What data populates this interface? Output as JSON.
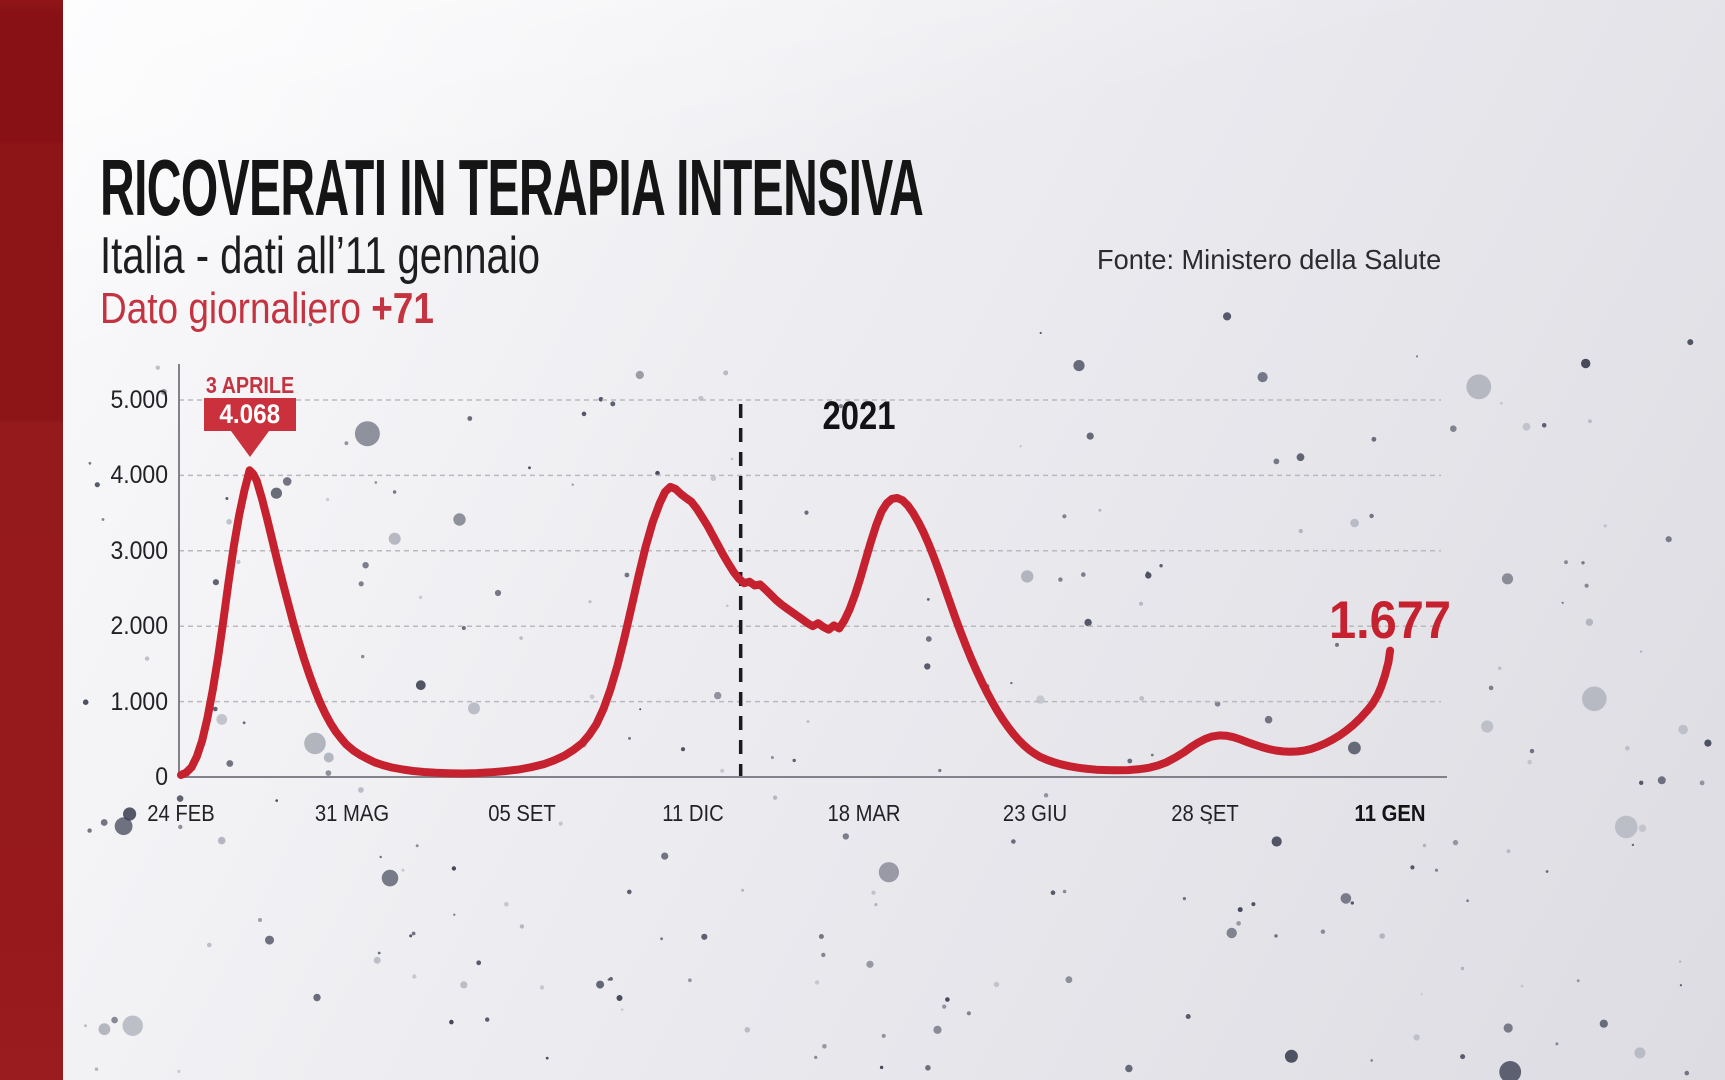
{
  "header": {
    "title": "RICOVERATI IN TERAPIA INTENSIVA",
    "subtitle": "Italia - dati all’11 gennaio",
    "source": "Fonte: Ministero della Salute",
    "daily_label": "Dato giornaliero ",
    "daily_value": "+71"
  },
  "colors": {
    "accent_red": "#c5212e",
    "text_red": "#c43440",
    "annotation_box_red": "#ca313c",
    "sidebar_red": "#8e1517",
    "grid_gray": "#b9b9c0",
    "axis_gray": "#82828a",
    "divider_black": "#1b1b1e",
    "dot_dark": "#3c4052",
    "dot_light": "#8e93a0"
  },
  "chart_data": {
    "type": "line",
    "title": "Ricoverati in terapia intensiva - Italia",
    "xlabel": "",
    "ylabel": "",
    "ylim": [
      0,
      5000
    ],
    "grid": "horizontal-dashed",
    "legend": "none",
    "x_axis": {
      "tick_labels": [
        "24 FEB",
        "31 MAG",
        "05 SET",
        "11 DIC",
        "18 MAR",
        "23 GIU",
        "28 SET",
        "11 GEN"
      ],
      "tick_days": [
        0,
        97,
        194,
        291,
        388,
        485,
        582,
        687
      ],
      "total_days": 687,
      "bold_label": "11 GEN"
    },
    "y_axis": {
      "tick_labels": [
        "0",
        "1.000",
        "2.000",
        "3.000",
        "4.000",
        "5.000"
      ],
      "tick_values": [
        0,
        1000,
        2000,
        3000,
        4000,
        5000
      ]
    },
    "year_divider": {
      "day": 318,
      "label": "2021"
    },
    "annotations": {
      "peak": {
        "date_label": "3 APRILE",
        "value_label": "4.068",
        "day": 39,
        "value": 4068
      },
      "latest": {
        "value_label": "1.677",
        "day": 687,
        "value": 1677
      }
    },
    "series": [
      {
        "name": "Terapia intensiva",
        "color": "#c5212e",
        "points": [
          [
            0,
            26
          ],
          [
            3,
            60
          ],
          [
            6,
            130
          ],
          [
            9,
            270
          ],
          [
            12,
            480
          ],
          [
            15,
            780
          ],
          [
            18,
            1150
          ],
          [
            21,
            1580
          ],
          [
            24,
            2060
          ],
          [
            27,
            2580
          ],
          [
            30,
            3060
          ],
          [
            33,
            3470
          ],
          [
            36,
            3800
          ],
          [
            39,
            4068
          ],
          [
            41,
            4020
          ],
          [
            43,
            3930
          ],
          [
            46,
            3690
          ],
          [
            49,
            3420
          ],
          [
            52,
            3130
          ],
          [
            55,
            2840
          ],
          [
            58,
            2560
          ],
          [
            61,
            2290
          ],
          [
            64,
            2030
          ],
          [
            67,
            1790
          ],
          [
            70,
            1560
          ],
          [
            73,
            1350
          ],
          [
            76,
            1160
          ],
          [
            79,
            990
          ],
          [
            82,
            840
          ],
          [
            85,
            710
          ],
          [
            88,
            600
          ],
          [
            91,
            510
          ],
          [
            94,
            430
          ],
          [
            98,
            350
          ],
          [
            102,
            290
          ],
          [
            106,
            240
          ],
          [
            110,
            195
          ],
          [
            115,
            155
          ],
          [
            120,
            125
          ],
          [
            126,
            100
          ],
          [
            132,
            80
          ],
          [
            138,
            66
          ],
          [
            145,
            56
          ],
          [
            152,
            50
          ],
          [
            160,
            47
          ],
          [
            168,
            52
          ],
          [
            176,
            62
          ],
          [
            184,
            78
          ],
          [
            192,
            100
          ],
          [
            199,
            130
          ],
          [
            206,
            170
          ],
          [
            212,
            220
          ],
          [
            218,
            285
          ],
          [
            223,
            360
          ],
          [
            228,
            450
          ],
          [
            232,
            560
          ],
          [
            236,
            700
          ],
          [
            240,
            900
          ],
          [
            244,
            1160
          ],
          [
            248,
            1480
          ],
          [
            252,
            1850
          ],
          [
            256,
            2260
          ],
          [
            260,
            2670
          ],
          [
            264,
            3050
          ],
          [
            268,
            3380
          ],
          [
            272,
            3630
          ],
          [
            275,
            3780
          ],
          [
            278,
            3848
          ],
          [
            281,
            3820
          ],
          [
            284,
            3755
          ],
          [
            287,
            3700
          ],
          [
            290,
            3650
          ],
          [
            293,
            3560
          ],
          [
            296,
            3450
          ],
          [
            299,
            3340
          ],
          [
            302,
            3210
          ],
          [
            305,
            3080
          ],
          [
            308,
            2950
          ],
          [
            311,
            2830
          ],
          [
            314,
            2720
          ],
          [
            317,
            2630
          ],
          [
            320,
            2570
          ],
          [
            323,
            2590
          ],
          [
            326,
            2540
          ],
          [
            329,
            2555
          ],
          [
            332,
            2490
          ],
          [
            335,
            2420
          ],
          [
            338,
            2350
          ],
          [
            341,
            2290
          ],
          [
            344,
            2240
          ],
          [
            347,
            2190
          ],
          [
            350,
            2140
          ],
          [
            353,
            2090
          ],
          [
            356,
            2040
          ],
          [
            359,
            2000
          ],
          [
            362,
            2040
          ],
          [
            365,
            1990
          ],
          [
            368,
            1955
          ],
          [
            371,
            2010
          ],
          [
            374,
            1970
          ],
          [
            377,
            2080
          ],
          [
            380,
            2230
          ],
          [
            383,
            2420
          ],
          [
            386,
            2640
          ],
          [
            389,
            2880
          ],
          [
            392,
            3120
          ],
          [
            395,
            3340
          ],
          [
            398,
            3520
          ],
          [
            401,
            3630
          ],
          [
            404,
            3690
          ],
          [
            407,
            3700
          ],
          [
            410,
            3670
          ],
          [
            413,
            3600
          ],
          [
            416,
            3500
          ],
          [
            419,
            3380
          ],
          [
            422,
            3240
          ],
          [
            425,
            3080
          ],
          [
            428,
            2900
          ],
          [
            431,
            2710
          ],
          [
            434,
            2510
          ],
          [
            437,
            2310
          ],
          [
            440,
            2110
          ],
          [
            443,
            1920
          ],
          [
            446,
            1740
          ],
          [
            449,
            1570
          ],
          [
            452,
            1410
          ],
          [
            455,
            1260
          ],
          [
            458,
            1120
          ],
          [
            461,
            990
          ],
          [
            464,
            870
          ],
          [
            467,
            760
          ],
          [
            470,
            660
          ],
          [
            473,
            570
          ],
          [
            476,
            490
          ],
          [
            479,
            420
          ],
          [
            482,
            360
          ],
          [
            485,
            310
          ],
          [
            488,
            268
          ],
          [
            492,
            228
          ],
          [
            496,
            195
          ],
          [
            500,
            168
          ],
          [
            505,
            142
          ],
          [
            510,
            122
          ],
          [
            515,
            107
          ],
          [
            520,
            97
          ],
          [
            526,
            91
          ],
          [
            532,
            89
          ],
          [
            538,
            92
          ],
          [
            544,
            102
          ],
          [
            550,
            122
          ],
          [
            555,
            152
          ],
          [
            560,
            196
          ],
          [
            565,
            258
          ],
          [
            570,
            330
          ],
          [
            574,
            398
          ],
          [
            578,
            458
          ],
          [
            582,
            505
          ],
          [
            586,
            538
          ],
          [
            590,
            552
          ],
          [
            594,
            548
          ],
          [
            598,
            528
          ],
          [
            602,
            498
          ],
          [
            606,
            462
          ],
          [
            610,
            428
          ],
          [
            614,
            398
          ],
          [
            618,
            372
          ],
          [
            622,
            352
          ],
          [
            626,
            340
          ],
          [
            630,
            335
          ],
          [
            634,
            338
          ],
          [
            638,
            350
          ],
          [
            642,
            372
          ],
          [
            646,
            404
          ],
          [
            650,
            444
          ],
          [
            654,
            492
          ],
          [
            658,
            548
          ],
          [
            662,
            614
          ],
          [
            666,
            690
          ],
          [
            670,
            778
          ],
          [
            674,
            880
          ],
          [
            677,
            968
          ],
          [
            680,
            1090
          ],
          [
            682,
            1200
          ],
          [
            684,
            1340
          ],
          [
            686,
            1520
          ],
          [
            687,
            1677
          ]
        ]
      }
    ]
  }
}
